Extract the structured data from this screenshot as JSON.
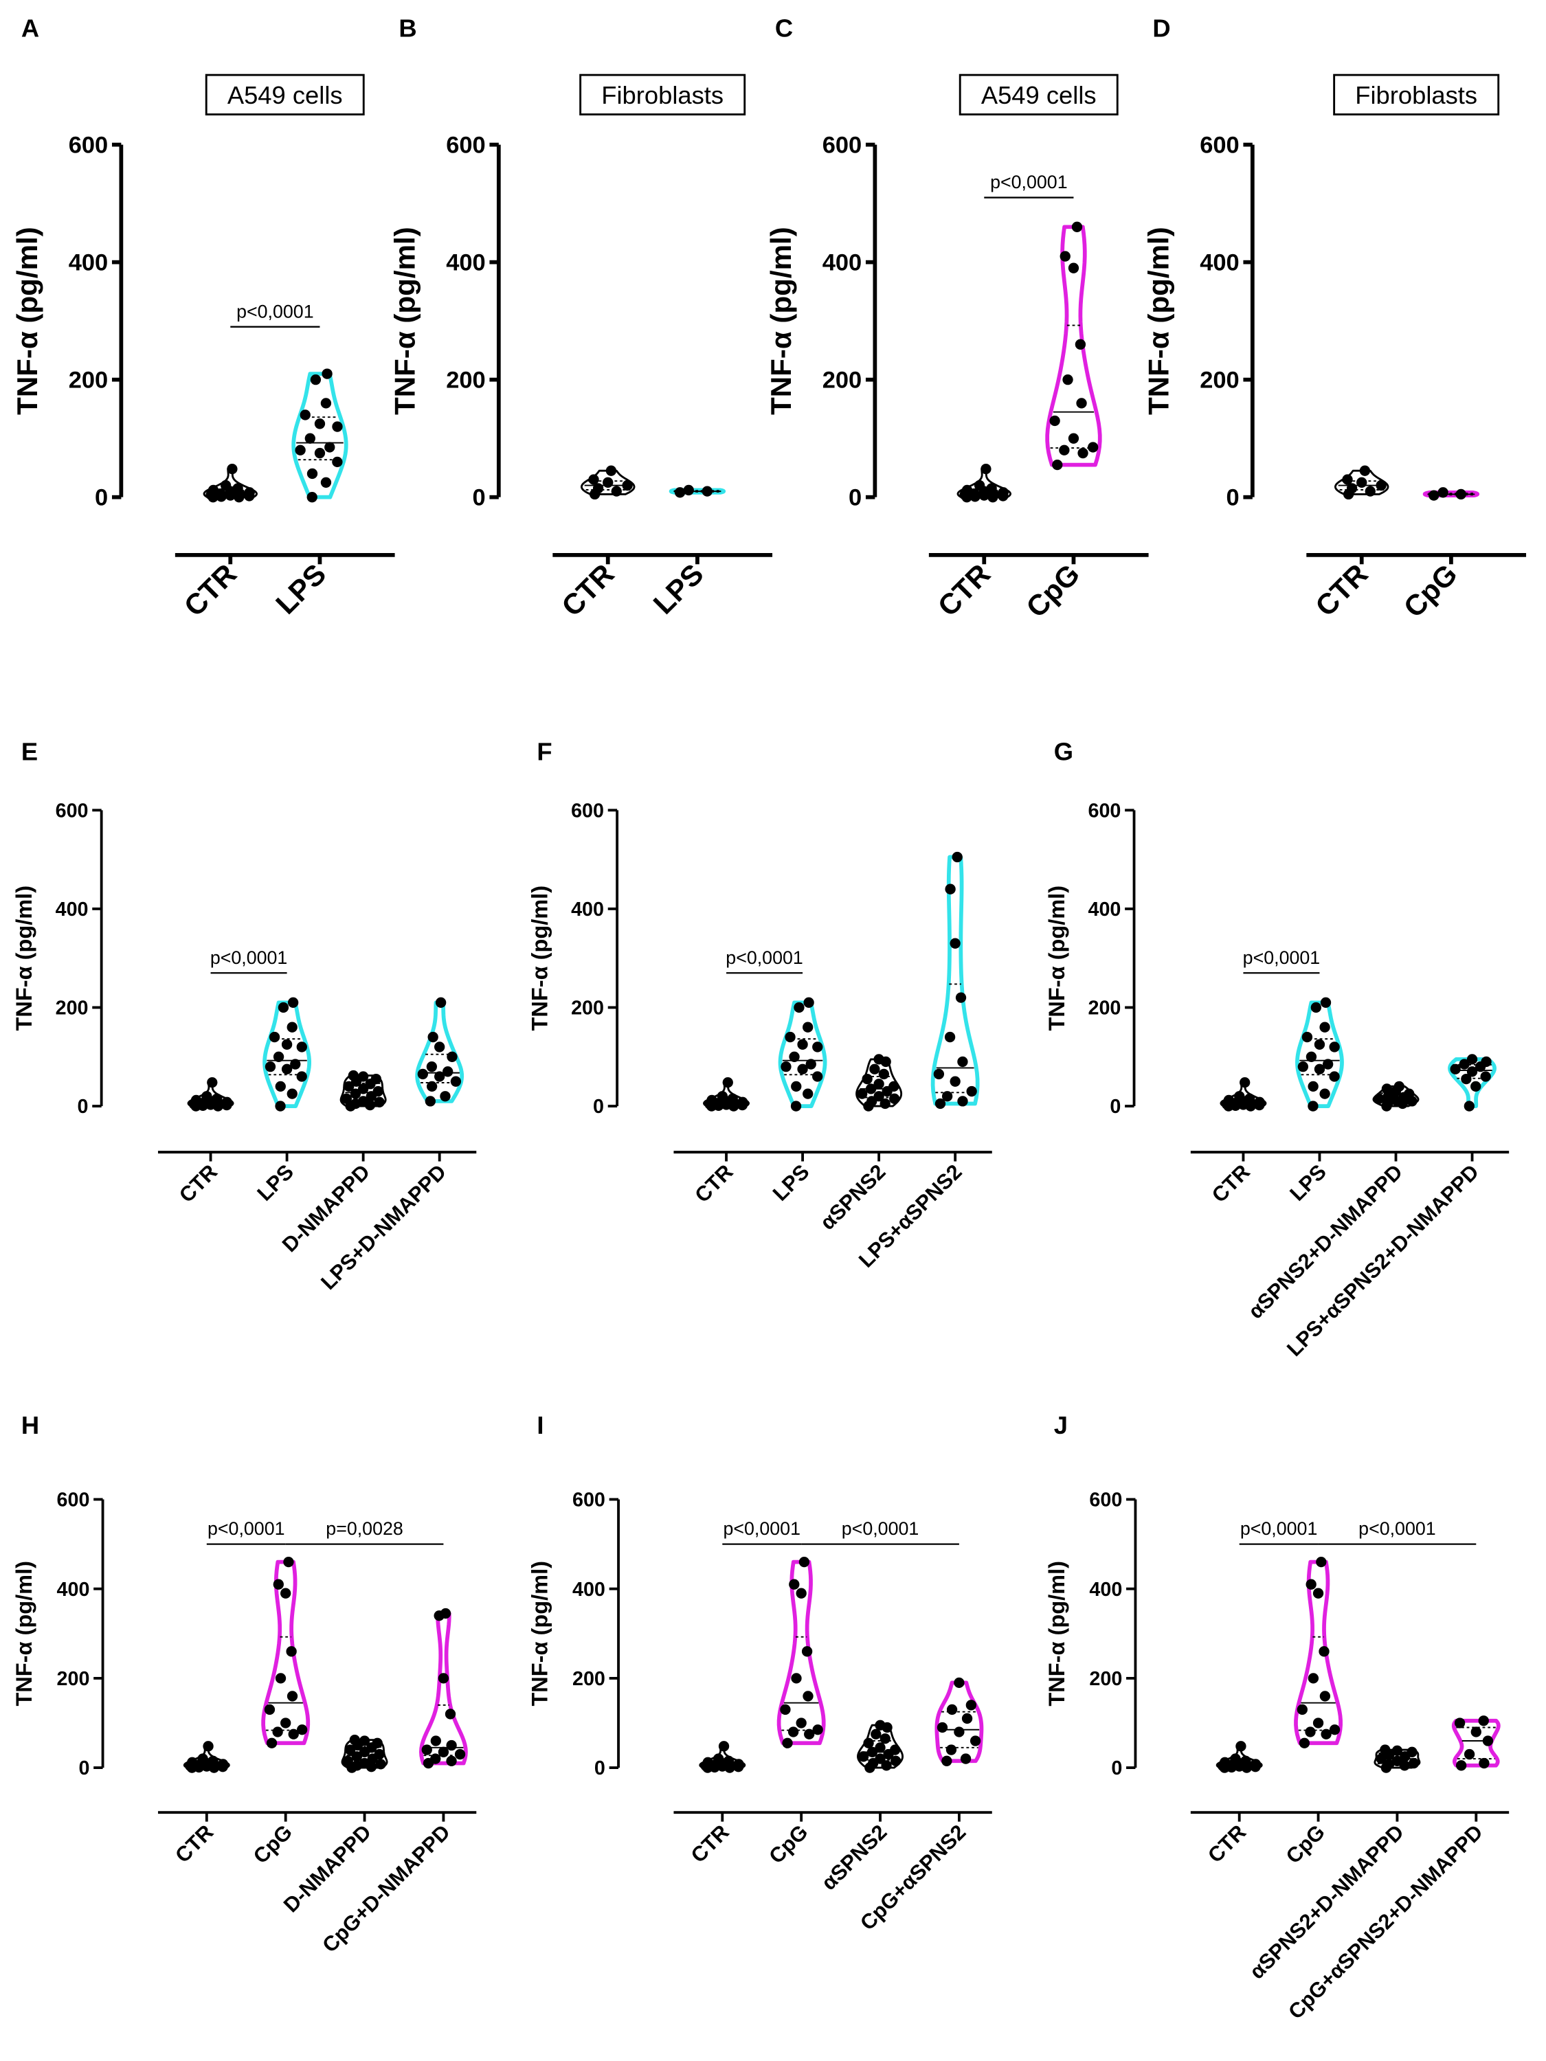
{
  "chart_data": [
    {
      "type": "violin",
      "panel": "A",
      "title": "A549 cells",
      "ylabel": "TNF-α (pg/ml)",
      "ylim": [
        0,
        600
      ],
      "yticks": [
        0,
        200,
        400,
        600
      ],
      "categories": [
        "CTR",
        "LPS"
      ],
      "colors": [
        "#000000",
        "#33e3ea"
      ],
      "values": [
        [
          0,
          0,
          1,
          2,
          3,
          4,
          5,
          6,
          8,
          10,
          12,
          15,
          20,
          48
        ],
        [
          0,
          25,
          40,
          60,
          75,
          80,
          85,
          100,
          120,
          125,
          140,
          160,
          200,
          210
        ]
      ],
      "annotations": [
        {
          "text": "p<0,0001",
          "from": "CTR",
          "to": "LPS",
          "y": 290
        }
      ]
    },
    {
      "type": "violin",
      "panel": "B",
      "title": "Fibroblasts",
      "ylabel": "TNF-α (pg/ml)",
      "ylim": [
        0,
        600
      ],
      "yticks": [
        0,
        200,
        400,
        600
      ],
      "categories": [
        "CTR",
        "LPS"
      ],
      "colors": [
        "#000000",
        "#33e3ea"
      ],
      "values": [
        [
          5,
          10,
          15,
          20,
          25,
          30,
          45
        ],
        [
          8,
          10,
          12
        ]
      ],
      "annotations": []
    },
    {
      "type": "violin",
      "panel": "C",
      "title": "A549 cells",
      "ylabel": "TNF-α (pg/ml)",
      "ylim": [
        0,
        600
      ],
      "yticks": [
        0,
        200,
        400,
        600
      ],
      "categories": [
        "CTR",
        "CpG"
      ],
      "colors": [
        "#000000",
        "#e020e0"
      ],
      "values": [
        [
          0,
          0,
          1,
          2,
          3,
          4,
          5,
          6,
          8,
          10,
          12,
          15,
          20,
          48
        ],
        [
          55,
          75,
          80,
          85,
          100,
          130,
          160,
          200,
          260,
          390,
          410,
          460
        ]
      ],
      "annotations": [
        {
          "text": "p<0,0001",
          "from": "CTR",
          "to": "CpG",
          "y": 510
        }
      ]
    },
    {
      "type": "violin",
      "panel": "D",
      "title": "Fibroblasts",
      "ylabel": "TNF-α (pg/ml)",
      "ylim": [
        0,
        600
      ],
      "yticks": [
        0,
        200,
        400,
        600
      ],
      "categories": [
        "CTR",
        "CpG"
      ],
      "colors": [
        "#000000",
        "#e020e0"
      ],
      "values": [
        [
          5,
          10,
          15,
          20,
          25,
          30,
          45
        ],
        [
          3,
          5,
          8
        ]
      ],
      "annotations": []
    },
    {
      "type": "violin",
      "panel": "E",
      "ylabel": "TNF-α (pg/ml)",
      "ylim": [
        0,
        600
      ],
      "yticks": [
        0,
        200,
        400,
        600
      ],
      "categories": [
        "CTR",
        "LPS",
        "D-NMAPPD",
        "LPS+D-NMAPPD"
      ],
      "colors": [
        "#000000",
        "#33e3ea",
        "#000000",
        "#33e3ea"
      ],
      "values": [
        [
          0,
          0,
          1,
          2,
          3,
          4,
          5,
          6,
          8,
          10,
          12,
          15,
          20,
          48
        ],
        [
          0,
          25,
          40,
          60,
          75,
          80,
          85,
          100,
          120,
          125,
          140,
          160,
          200,
          210
        ],
        [
          0,
          2,
          5,
          8,
          10,
          15,
          20,
          25,
          30,
          35,
          40,
          45,
          50,
          55,
          60,
          62
        ],
        [
          10,
          20,
          40,
          50,
          60,
          65,
          70,
          80,
          100,
          120,
          140,
          210
        ]
      ],
      "annotations": [
        {
          "text": "p<0,0001",
          "from": "CTR",
          "to": "LPS",
          "y": 270
        }
      ]
    },
    {
      "type": "violin",
      "panel": "F",
      "ylabel": "TNF-α (pg/ml)",
      "ylim": [
        0,
        600
      ],
      "yticks": [
        0,
        200,
        400,
        600
      ],
      "categories": [
        "CTR",
        "LPS",
        "αSPNS2",
        "LPS+αSPNS2"
      ],
      "colors": [
        "#000000",
        "#33e3ea",
        "#000000",
        "#33e3ea"
      ],
      "values": [
        [
          0,
          0,
          1,
          2,
          3,
          4,
          5,
          6,
          8,
          10,
          12,
          15,
          20,
          48
        ],
        [
          0,
          25,
          40,
          60,
          75,
          80,
          85,
          100,
          120,
          125,
          140,
          160,
          200,
          210
        ],
        [
          0,
          5,
          10,
          15,
          20,
          25,
          30,
          35,
          40,
          45,
          55,
          65,
          75,
          90,
          95
        ],
        [
          5,
          10,
          20,
          30,
          50,
          65,
          90,
          140,
          220,
          330,
          440,
          505
        ]
      ],
      "annotations": [
        {
          "text": "p<0,0001",
          "from": "CTR",
          "to": "LPS",
          "y": 270
        }
      ]
    },
    {
      "type": "violin",
      "panel": "G",
      "ylabel": "TNF-α (pg/ml)",
      "ylim": [
        0,
        600
      ],
      "yticks": [
        0,
        200,
        400,
        600
      ],
      "categories": [
        "CTR",
        "LPS",
        "αSPNS2+D-NMAPPD",
        "LPS+αSPNS2+D-NMAPPD"
      ],
      "colors": [
        "#000000",
        "#33e3ea",
        "#000000",
        "#33e3ea"
      ],
      "values": [
        [
          0,
          0,
          1,
          2,
          3,
          4,
          5,
          6,
          8,
          10,
          12,
          15,
          20,
          48
        ],
        [
          0,
          25,
          40,
          60,
          75,
          80,
          85,
          100,
          120,
          125,
          140,
          160,
          200,
          210
        ],
        [
          0,
          5,
          8,
          10,
          12,
          15,
          18,
          20,
          25,
          30,
          35,
          40
        ],
        [
          0,
          40,
          55,
          60,
          70,
          75,
          80,
          85,
          90,
          95
        ]
      ],
      "annotations": [
        {
          "text": "p<0,0001",
          "from": "CTR",
          "to": "LPS",
          "y": 270
        }
      ]
    },
    {
      "type": "violin",
      "panel": "H",
      "ylabel": "TNF-α (pg/ml)",
      "ylim": [
        0,
        600
      ],
      "yticks": [
        0,
        200,
        400,
        600
      ],
      "categories": [
        "CTR",
        "CpG",
        "D-NMAPPD",
        "CpG+D-NMAPPD"
      ],
      "colors": [
        "#000000",
        "#e020e0",
        "#000000",
        "#e020e0"
      ],
      "values": [
        [
          0,
          0,
          1,
          2,
          3,
          4,
          5,
          6,
          8,
          10,
          12,
          15,
          20,
          48
        ],
        [
          55,
          75,
          80,
          85,
          100,
          130,
          160,
          200,
          260,
          390,
          410,
          460
        ],
        [
          0,
          2,
          5,
          8,
          10,
          15,
          20,
          25,
          30,
          35,
          40,
          45,
          50,
          55,
          60,
          62
        ],
        [
          10,
          15,
          20,
          30,
          35,
          40,
          50,
          60,
          120,
          200,
          340,
          345
        ]
      ],
      "annotations": [
        {
          "text": "p<0,0001",
          "from": "CTR",
          "to": "CpG",
          "y": 500
        },
        {
          "text": "p=0,0028",
          "from": "CpG",
          "to": "CpG+D-NMAPPD",
          "y": 500
        }
      ]
    },
    {
      "type": "violin",
      "panel": "I",
      "ylabel": "TNF-α (pg/ml)",
      "ylim": [
        0,
        600
      ],
      "yticks": [
        0,
        200,
        400,
        600
      ],
      "categories": [
        "CTR",
        "CpG",
        "αSPNS2",
        "CpG+αSPNS2"
      ],
      "colors": [
        "#000000",
        "#e020e0",
        "#000000",
        "#e020e0"
      ],
      "values": [
        [
          0,
          0,
          1,
          2,
          3,
          4,
          5,
          6,
          8,
          10,
          12,
          15,
          20,
          48
        ],
        [
          55,
          75,
          80,
          85,
          100,
          130,
          160,
          200,
          260,
          390,
          410,
          460
        ],
        [
          0,
          5,
          10,
          15,
          20,
          25,
          30,
          35,
          40,
          45,
          55,
          65,
          75,
          90,
          95
        ],
        [
          15,
          20,
          40,
          60,
          80,
          90,
          110,
          130,
          140,
          190
        ]
      ],
      "annotations": [
        {
          "text": "p<0,0001",
          "from": "CTR",
          "to": "CpG",
          "y": 500
        },
        {
          "text": "p<0,0001",
          "from": "CpG",
          "to": "CpG+αSPNS2",
          "y": 500
        }
      ]
    },
    {
      "type": "violin",
      "panel": "J",
      "ylabel": "TNF-α (pg/ml)",
      "ylim": [
        0,
        600
      ],
      "yticks": [
        0,
        200,
        400,
        600
      ],
      "categories": [
        "CTR",
        "CpG",
        "αSPNS2+D-NMAPPD",
        "CpG+αSPNS2+D-NMAPPD"
      ],
      "colors": [
        "#000000",
        "#e020e0",
        "#000000",
        "#e020e0"
      ],
      "values": [
        [
          0,
          0,
          1,
          2,
          3,
          4,
          5,
          6,
          8,
          10,
          12,
          15,
          20,
          48
        ],
        [
          55,
          75,
          80,
          85,
          100,
          130,
          160,
          200,
          260,
          390,
          410,
          460
        ],
        [
          0,
          5,
          8,
          10,
          15,
          20,
          25,
          30,
          35,
          38,
          40
        ],
        [
          5,
          10,
          30,
          60,
          80,
          100,
          105
        ]
      ],
      "annotations": [
        {
          "text": "p<0,0001",
          "from": "CTR",
          "to": "CpG",
          "y": 500
        },
        {
          "text": "p<0,0001",
          "from": "CpG",
          "to": "CpG+αSPNS2+D-NMAPPD",
          "y": 500
        }
      ]
    }
  ]
}
